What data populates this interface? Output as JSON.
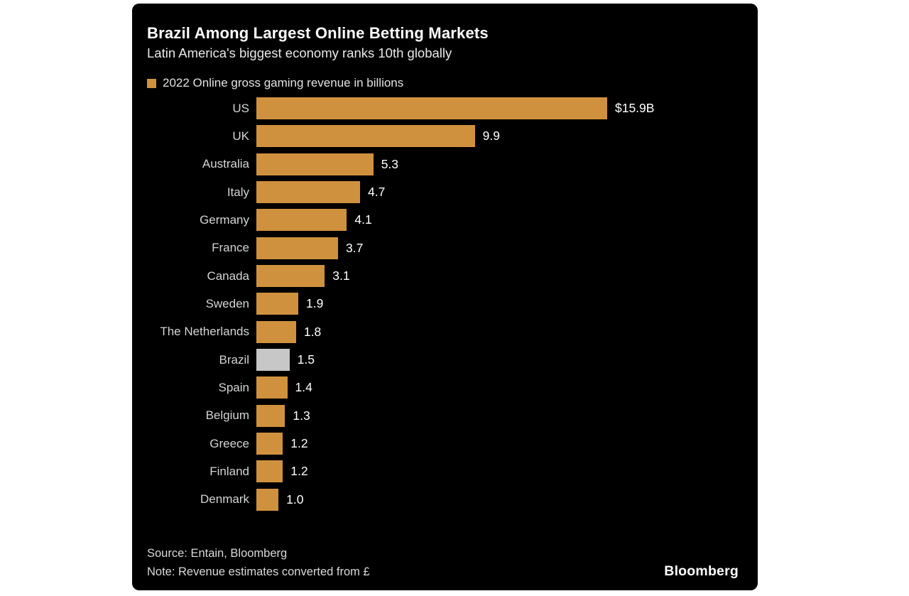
{
  "chart_data": {
    "type": "bar",
    "orientation": "horizontal",
    "title": "Brazil Among Largest Online Betting Markets",
    "subtitle": "Latin America's biggest economy ranks 10th globally",
    "legend": [
      {
        "label": "2022 Online gross gaming revenue in billions",
        "color": "#d0913e"
      }
    ],
    "categories": [
      "US",
      "UK",
      "Australia",
      "Italy",
      "Germany",
      "France",
      "Canada",
      "Sweden",
      "The Netherlands",
      "Brazil",
      "Spain",
      "Belgium",
      "Greece",
      "Finland",
      "Denmark"
    ],
    "values": [
      15.9,
      9.9,
      5.3,
      4.7,
      4.1,
      3.7,
      3.1,
      1.9,
      1.8,
      1.5,
      1.4,
      1.3,
      1.2,
      1.2,
      1.0
    ],
    "value_labels": [
      "$15.9B",
      "9.9",
      "5.3",
      "4.7",
      "4.1",
      "3.7",
      "3.1",
      "1.9",
      "1.8",
      "1.5",
      "1.4",
      "1.3",
      "1.2",
      "1.2",
      "1.0"
    ],
    "bar_color": "#d0913e",
    "highlight": {
      "category": "Brazil",
      "color": "#c7c7c7"
    },
    "xlim": [
      0,
      15.9
    ],
    "grid": false,
    "legend_position": "top-left"
  },
  "footer": {
    "source": "Source: Entain, Bloomberg",
    "note": "Note: Revenue estimates converted from £",
    "brand": "Bloomberg"
  },
  "colors": {
    "panel_background": "#000000",
    "page_background": "#ffffff",
    "title_text": "#ffffff",
    "label_text": "#d4d4d4",
    "value_text": "#ffffff",
    "accent_orange": "#d0913e",
    "highlight_gray": "#c7c7c7"
  }
}
